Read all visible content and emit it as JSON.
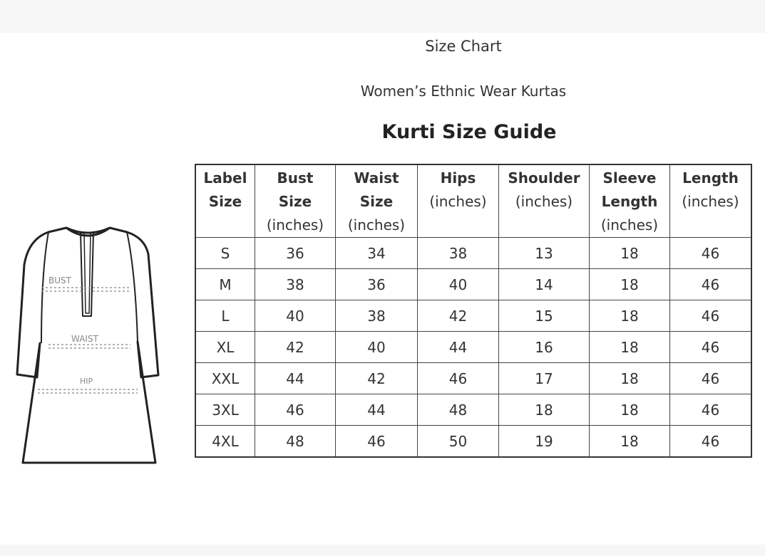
{
  "titles": {
    "line1": "Size Chart",
    "line2": "Women’s Ethnic Wear Kurtas",
    "heading": "Kurti Size Guide"
  },
  "illustration": {
    "labels": {
      "bust": "BUST",
      "waist": "WAIST",
      "hip": "HIP"
    }
  },
  "table": {
    "headers": [
      [
        "Label",
        "Size"
      ],
      [
        "Bust",
        "Size",
        "(inches)"
      ],
      [
        "Waist",
        "Size",
        "(inches)"
      ],
      [
        "Hips",
        "(inches)"
      ],
      [
        "Shoulder",
        "(inches)"
      ],
      [
        "Sleeve",
        "Length",
        "(inches)"
      ],
      [
        "Length",
        "(inches)"
      ]
    ],
    "rows": [
      [
        "S",
        "36",
        "34",
        "38",
        "13",
        "18",
        "46"
      ],
      [
        "M",
        "38",
        "36",
        "40",
        "14",
        "18",
        "46"
      ],
      [
        "L",
        "40",
        "38",
        "42",
        "15",
        "18",
        "46"
      ],
      [
        "XL",
        "42",
        "40",
        "44",
        "16",
        "18",
        "46"
      ],
      [
        "XXL",
        "44",
        "42",
        "46",
        "17",
        "18",
        "46"
      ],
      [
        "3XL",
        "46",
        "44",
        "48",
        "18",
        "18",
        "46"
      ],
      [
        "4XL",
        "48",
        "46",
        "50",
        "19",
        "18",
        "46"
      ]
    ]
  }
}
